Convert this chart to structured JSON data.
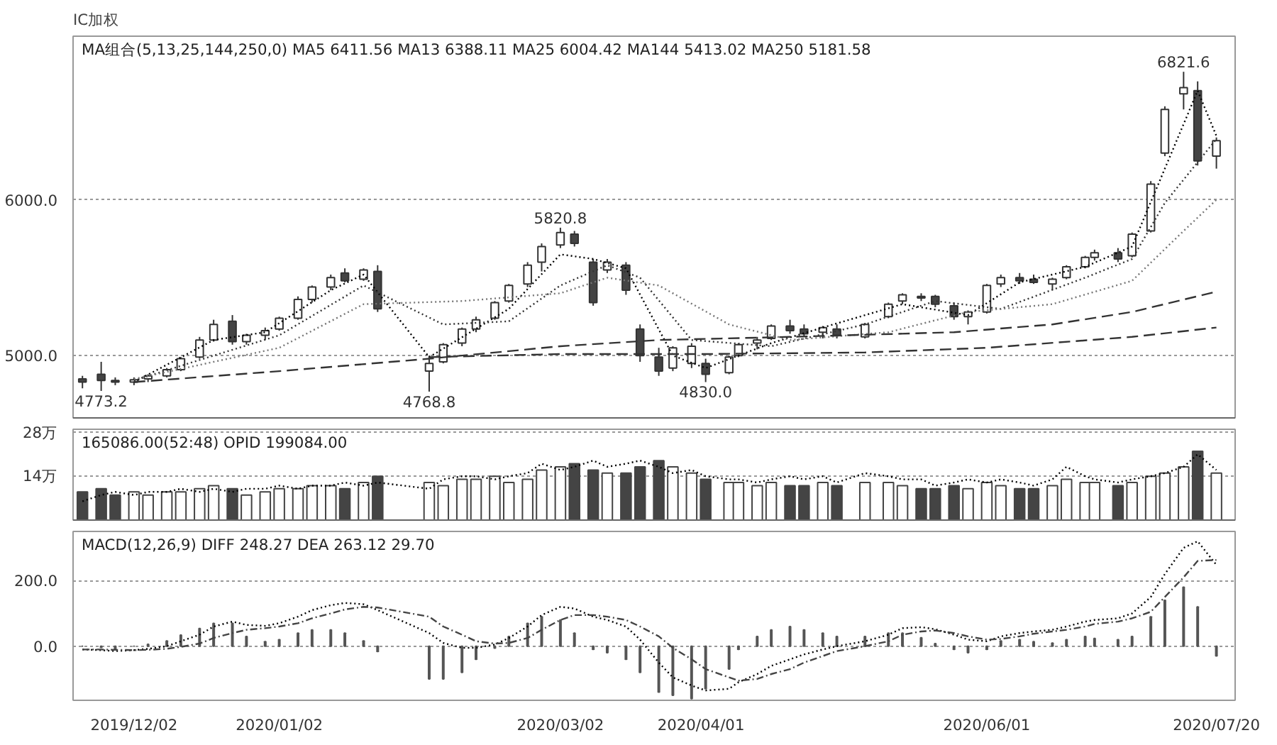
{
  "chart_data": [
    {
      "type": "candlestick",
      "title": "IC加权",
      "colors": [
        "#444444",
        "#444444",
        "#444444",
        "#ffffff",
        "#ffffff",
        "#ffffff",
        "#ffffff",
        "#ffffff",
        "#ffffff",
        "#444444",
        "#ffffff",
        "#ffffff",
        "#ffffff",
        "#ffffff",
        "#ffffff",
        "#ffffff",
        "#444444",
        "#ffffff",
        "#444444",
        "#ffffff",
        "#ffffff",
        "#ffffff",
        "#ffffff",
        "#ffffff",
        "#ffffff",
        "#ffffff",
        "#ffffff",
        "#ffffff",
        "#444444",
        "#444444",
        "#ffffff",
        "#444444",
        "#444444",
        "#444444",
        "#ffffff",
        "#ffffff",
        "#444444",
        "#ffffff",
        "#ffffff",
        "#ffffff",
        "#ffffff",
        "#444444",
        "#444444",
        "#ffffff",
        "#444444",
        "#ffffff",
        "#ffffff",
        "#ffffff",
        "#444444",
        "#444444",
        "#444444",
        "#ffffff",
        "#ffffff",
        "#ffffff",
        "#444444",
        "#444444",
        "#ffffff",
        "#ffffff",
        "#ffffff",
        "#ffffff",
        "#444444",
        "#ffffff",
        "#ffffff",
        "#ffffff",
        "#ffffff",
        "#444444",
        "#ffffff"
      ],
      "xlim": [
        "2019-11-19",
        "2020-07-24"
      ],
      "ylim": [
        4600,
        7050
      ],
      "yticks": [
        {
          "value": 5000,
          "label": "5000.0"
        },
        {
          "value": 6000,
          "label": "6000.0"
        }
      ],
      "grid": "y",
      "tick_labels": "y",
      "annotations": [
        "MA组合(5,13,25,144,250,0)  MA5 6411.56  MA13 6388.11  MA25 6004.42  MA144 5413.02  MA250 5181.58",
        {
          "text": "6821.6",
          "x": "2020-07-13",
          "y": 6821.6
        },
        {
          "text": "5820.8",
          "x": "2020-03-02",
          "y": 5820.8
        },
        {
          "text": "4768.8",
          "x": "2020-02-03",
          "y": 4768.8
        },
        {
          "text": "4830.0",
          "x": "2020-04-02",
          "y": 4830.0
        },
        {
          "text": "4773.2",
          "x": "2019-11-25",
          "y": 4773.2
        }
      ],
      "x": [
        "2019-11-21",
        "2019-11-25",
        "2019-11-28",
        "2019-12-02",
        "2019-12-05",
        "2019-12-09",
        "2019-12-12",
        "2019-12-16",
        "2019-12-19",
        "2019-12-23",
        "2019-12-26",
        "2019-12-30",
        "2020-01-02",
        "2020-01-06",
        "2020-01-09",
        "2020-01-13",
        "2020-01-16",
        "2020-01-20",
        "2020-01-23",
        "2020-02-03",
        "2020-02-06",
        "2020-02-10",
        "2020-02-13",
        "2020-02-17",
        "2020-02-20",
        "2020-02-24",
        "2020-02-27",
        "2020-03-02",
        "2020-03-05",
        "2020-03-09",
        "2020-03-12",
        "2020-03-16",
        "2020-03-19",
        "2020-03-23",
        "2020-03-26",
        "2020-03-30",
        "2020-04-02",
        "2020-04-07",
        "2020-04-09",
        "2020-04-13",
        "2020-04-16",
        "2020-04-20",
        "2020-04-23",
        "2020-04-27",
        "2020-04-30",
        "2020-05-06",
        "2020-05-11",
        "2020-05-14",
        "2020-05-18",
        "2020-05-21",
        "2020-05-25",
        "2020-05-28",
        "2020-06-01",
        "2020-06-04",
        "2020-06-08",
        "2020-06-11",
        "2020-06-15",
        "2020-06-18",
        "2020-06-22",
        "2020-06-24",
        "2020-06-29",
        "2020-07-02",
        "2020-07-06",
        "2020-07-09",
        "2020-07-13",
        "2020-07-16",
        "2020-07-20"
      ],
      "ohlc": [
        [
          4850,
          4870,
          4790,
          4830
        ],
        [
          4880,
          4960,
          4773.2,
          4840
        ],
        [
          4840,
          4860,
          4810,
          4830
        ],
        [
          4830,
          4860,
          4810,
          4845
        ],
        [
          4850,
          4880,
          4830,
          4870
        ],
        [
          4870,
          4920,
          4860,
          4910
        ],
        [
          4910,
          4990,
          4900,
          4980
        ],
        [
          4990,
          5120,
          4980,
          5100
        ],
        [
          5100,
          5230,
          5090,
          5200
        ],
        [
          5220,
          5260,
          5070,
          5090
        ],
        [
          5090,
          5140,
          5070,
          5130
        ],
        [
          5130,
          5180,
          5100,
          5160
        ],
        [
          5170,
          5250,
          5160,
          5240
        ],
        [
          5240,
          5380,
          5230,
          5360
        ],
        [
          5360,
          5450,
          5340,
          5440
        ],
        [
          5440,
          5520,
          5420,
          5500
        ],
        [
          5530,
          5560,
          5470,
          5480
        ],
        [
          5490,
          5560,
          5480,
          5550
        ],
        [
          5540,
          5580,
          5280,
          5300
        ],
        [
          4900,
          5000,
          4768.8,
          4950
        ],
        [
          4960,
          5080,
          4950,
          5070
        ],
        [
          5080,
          5180,
          5060,
          5170
        ],
        [
          5170,
          5250,
          5150,
          5230
        ],
        [
          5240,
          5350,
          5230,
          5340
        ],
        [
          5350,
          5460,
          5340,
          5450
        ],
        [
          5460,
          5600,
          5440,
          5580
        ],
        [
          5600,
          5720,
          5540,
          5700
        ],
        [
          5710,
          5820.8,
          5690,
          5790
        ],
        [
          5780,
          5800,
          5700,
          5720
        ],
        [
          5600,
          5620,
          5320,
          5340
        ],
        [
          5550,
          5620,
          5530,
          5600
        ],
        [
          5580,
          5600,
          5390,
          5420
        ],
        [
          5170,
          5200,
          4960,
          5000
        ],
        [
          4990,
          5050,
          4870,
          4900
        ],
        [
          4920,
          5060,
          4900,
          5050
        ],
        [
          4950,
          5080,
          4920,
          5060
        ],
        [
          4950,
          4980,
          4830.0,
          4880
        ],
        [
          4890,
          5000,
          4880,
          4990
        ],
        [
          5000,
          5080,
          4990,
          5070
        ],
        [
          5080,
          5120,
          5040,
          5100
        ],
        [
          5110,
          5200,
          5100,
          5190
        ],
        [
          5190,
          5230,
          5140,
          5160
        ],
        [
          5170,
          5200,
          5120,
          5140
        ],
        [
          5150,
          5190,
          5110,
          5180
        ],
        [
          5170,
          5200,
          5110,
          5130
        ],
        [
          5120,
          5210,
          5110,
          5200
        ],
        [
          5250,
          5340,
          5240,
          5330
        ],
        [
          5350,
          5400,
          5330,
          5390
        ],
        [
          5380,
          5400,
          5350,
          5370
        ],
        [
          5380,
          5390,
          5310,
          5330
        ],
        [
          5320,
          5340,
          5230,
          5250
        ],
        [
          5250,
          5290,
          5200,
          5280
        ],
        [
          5280,
          5460,
          5270,
          5450
        ],
        [
          5460,
          5520,
          5440,
          5500
        ],
        [
          5500,
          5530,
          5460,
          5480
        ],
        [
          5490,
          5520,
          5460,
          5470
        ],
        [
          5460,
          5500,
          5420,
          5490
        ],
        [
          5500,
          5580,
          5490,
          5570
        ],
        [
          5570,
          5640,
          5560,
          5630
        ],
        [
          5630,
          5680,
          5610,
          5660
        ],
        [
          5660,
          5690,
          5600,
          5620
        ],
        [
          5640,
          5790,
          5630,
          5780
        ],
        [
          5800,
          6120,
          5790,
          6100
        ],
        [
          6300,
          6600,
          6280,
          6580
        ],
        [
          6680,
          6821.6,
          6580,
          6720
        ],
        [
          6700,
          6760,
          6220,
          6250
        ],
        [
          6280,
          6400,
          6200,
          6380
        ]
      ],
      "series": [
        {
          "type": "line",
          "color": "#000000",
          "line_style": "dotted",
          "x": [
            "2019-12-02",
            "2019-12-19",
            "2019-12-30",
            "2020-01-13",
            "2020-01-20",
            "2020-02-03",
            "2020-02-20",
            "2020-03-02",
            "2020-03-09",
            "2020-03-16",
            "2020-03-26",
            "2020-04-02",
            "2020-04-16",
            "2020-04-27",
            "2020-05-14",
            "2020-05-28",
            "2020-06-08",
            "2020-06-22",
            "2020-07-02",
            "2020-07-09",
            "2020-07-16",
            "2020-07-20"
          ],
          "values": [
            4830,
            5100,
            5150,
            5420,
            5520,
            4990,
            5300,
            5650,
            5620,
            5560,
            5000,
            4920,
            5080,
            5180,
            5330,
            5260,
            5470,
            5570,
            5700,
            6200,
            6700,
            6410
          ]
        },
        {
          "type": "line",
          "color": "#333333",
          "line_style": "dotted",
          "x": [
            "2019-12-02",
            "2019-12-19",
            "2020-01-02",
            "2020-01-20",
            "2020-02-06",
            "2020-02-20",
            "2020-03-02",
            "2020-03-12",
            "2020-03-19",
            "2020-03-30",
            "2020-04-16",
            "2020-05-06",
            "2020-05-21",
            "2020-06-04",
            "2020-06-22",
            "2020-07-02",
            "2020-07-09",
            "2020-07-20"
          ],
          "values": [
            4840,
            5000,
            5130,
            5450,
            5200,
            5220,
            5450,
            5580,
            5500,
            5100,
            5060,
            5200,
            5350,
            5300,
            5500,
            5620,
            5980,
            6390
          ]
        },
        {
          "type": "line",
          "color": "#777777",
          "line_style": "dotted",
          "x": [
            "2019-12-02",
            "2020-01-02",
            "2020-01-20",
            "2020-02-10",
            "2020-03-02",
            "2020-03-12",
            "2020-03-23",
            "2020-04-07",
            "2020-04-20",
            "2020-05-11",
            "2020-05-28",
            "2020-06-15",
            "2020-07-02",
            "2020-07-13",
            "2020-07-20"
          ],
          "values": [
            4850,
            5050,
            5330,
            5350,
            5400,
            5500,
            5450,
            5200,
            5100,
            5150,
            5280,
            5330,
            5480,
            5800,
            6000
          ]
        },
        {
          "type": "line",
          "color": "#333333",
          "line_style": "dashed",
          "x": [
            "2019-12-02",
            "2020-01-02",
            "2020-02-03",
            "2020-03-02",
            "2020-03-23",
            "2020-04-20",
            "2020-05-25",
            "2020-06-15",
            "2020-07-02",
            "2020-07-20"
          ],
          "values": [
            4830,
            4900,
            4980,
            5060,
            5100,
            5120,
            5150,
            5200,
            5280,
            5410
          ]
        },
        {
          "type": "line",
          "color": "#333333",
          "line_style": "dashed",
          "x": [
            "2020-02-03",
            "2020-03-02",
            "2020-04-02",
            "2020-05-06",
            "2020-06-01",
            "2020-07-02",
            "2020-07-20"
          ],
          "values": [
            4990,
            5010,
            5010,
            5020,
            5050,
            5120,
            5180
          ]
        }
      ]
    },
    {
      "type": "bar",
      "xlim": [
        "2019-11-19",
        "2020-07-24"
      ],
      "ylim": [
        0,
        29
      ],
      "yticks": [
        {
          "value": 14,
          "label": "14万"
        },
        {
          "value": 28,
          "label": "28万"
        }
      ],
      "grid": "y",
      "tick_labels": "y",
      "annotations": [
        "165086.00(52:48)  OPID 199084.00"
      ],
      "x": [
        "2019-11-21",
        "2019-11-25",
        "2019-11-28",
        "2019-12-02",
        "2019-12-05",
        "2019-12-09",
        "2019-12-12",
        "2019-12-16",
        "2019-12-19",
        "2019-12-23",
        "2019-12-26",
        "2019-12-30",
        "2020-01-02",
        "2020-01-06",
        "2020-01-09",
        "2020-01-13",
        "2020-01-16",
        "2020-01-20",
        "2020-01-23",
        "2020-02-03",
        "2020-02-06",
        "2020-02-10",
        "2020-02-13",
        "2020-02-17",
        "2020-02-20",
        "2020-02-24",
        "2020-02-27",
        "2020-03-02",
        "2020-03-05",
        "2020-03-09",
        "2020-03-12",
        "2020-03-16",
        "2020-03-19",
        "2020-03-23",
        "2020-03-26",
        "2020-03-30",
        "2020-04-02",
        "2020-04-07",
        "2020-04-09",
        "2020-04-13",
        "2020-04-16",
        "2020-04-20",
        "2020-04-23",
        "2020-04-27",
        "2020-04-30",
        "2020-05-06",
        "2020-05-11",
        "2020-05-14",
        "2020-05-18",
        "2020-05-21",
        "2020-05-25",
        "2020-05-28",
        "2020-06-01",
        "2020-06-04",
        "2020-06-08",
        "2020-06-11",
        "2020-06-15",
        "2020-06-18",
        "2020-06-22",
        "2020-06-24",
        "2020-06-29",
        "2020-07-02",
        "2020-07-06",
        "2020-07-09",
        "2020-07-13",
        "2020-07-16",
        "2020-07-20"
      ],
      "series": [
        {
          "type": "bar",
          "colors": [
            "#444444",
            "#444444",
            "#444444",
            "#ffffff",
            "#ffffff",
            "#ffffff",
            "#ffffff",
            "#ffffff",
            "#ffffff",
            "#444444",
            "#ffffff",
            "#ffffff",
            "#ffffff",
            "#ffffff",
            "#ffffff",
            "#ffffff",
            "#444444",
            "#ffffff",
            "#444444",
            "#ffffff",
            "#ffffff",
            "#ffffff",
            "#ffffff",
            "#ffffff",
            "#ffffff",
            "#ffffff",
            "#ffffff",
            "#ffffff",
            "#444444",
            "#444444",
            "#ffffff",
            "#444444",
            "#444444",
            "#444444",
            "#ffffff",
            "#ffffff",
            "#444444",
            "#ffffff",
            "#ffffff",
            "#ffffff",
            "#ffffff",
            "#444444",
            "#444444",
            "#ffffff",
            "#444444",
            "#ffffff",
            "#ffffff",
            "#ffffff",
            "#444444",
            "#444444",
            "#444444",
            "#ffffff",
            "#ffffff",
            "#ffffff",
            "#444444",
            "#444444",
            "#ffffff",
            "#ffffff",
            "#ffffff",
            "#ffffff",
            "#444444",
            "#ffffff",
            "#ffffff",
            "#ffffff",
            "#ffffff",
            "#444444",
            "#ffffff"
          ],
          "values": [
            9,
            10,
            8,
            9,
            8,
            9,
            9,
            10,
            11,
            10,
            8,
            9,
            10,
            10,
            11,
            11,
            10,
            12,
            14,
            12,
            11,
            13,
            13,
            14,
            12,
            13,
            16,
            17,
            18,
            16,
            15,
            15,
            17,
            19,
            17,
            15,
            13,
            12,
            12,
            11,
            12,
            11,
            11,
            12,
            11,
            12,
            12,
            11,
            10,
            10,
            11,
            10,
            12,
            11,
            10,
            10,
            11,
            13,
            12,
            12,
            11,
            12,
            14,
            15,
            17,
            22,
            15
          ]
        },
        {
          "type": "line",
          "color": "#000000",
          "line_style": "dotted",
          "values": [
            6,
            8,
            9,
            8,
            9,
            9,
            10,
            9,
            10,
            9,
            10,
            10,
            11,
            10,
            11,
            11,
            12,
            11,
            12,
            10,
            13,
            14,
            14,
            13,
            14,
            15,
            18,
            16,
            17,
            19,
            17,
            18,
            19,
            17,
            15,
            16,
            14,
            13,
            13,
            12,
            13,
            14,
            13,
            14,
            12,
            15,
            14,
            13,
            13,
            11,
            12,
            13,
            12,
            13,
            12,
            11,
            13,
            17,
            14,
            13,
            12,
            13,
            14,
            15,
            17,
            21,
            16
          ]
        }
      ]
    },
    {
      "type": "line",
      "xlim": [
        "2019-11-19",
        "2020-07-24"
      ],
      "ylim": [
        -165,
        350
      ],
      "yticks": [
        {
          "value": 0,
          "label": "0.0"
        },
        {
          "value": 200,
          "label": "200.0"
        }
      ],
      "grid": "y",
      "xticks": [
        {
          "value": "2019-12-02",
          "label": "2019/12/02"
        },
        {
          "value": "2020-01-02",
          "label": "2020/01/02"
        },
        {
          "value": "2020-03-02",
          "label": "2020/03/02"
        },
        {
          "value": "2020-04-01",
          "label": "2020/04/01"
        },
        {
          "value": "2020-06-01",
          "label": "2020/06/01"
        },
        {
          "value": "2020-07-20",
          "label": "2020/07/20"
        }
      ],
      "annotations": [
        "MACD(12,26,9)  DIFF 248.27  DEA 263.12  29.70"
      ],
      "x": [
        "2019-11-21",
        "2019-11-25",
        "2019-11-28",
        "2019-12-02",
        "2019-12-05",
        "2019-12-09",
        "2019-12-12",
        "2019-12-16",
        "2019-12-19",
        "2019-12-23",
        "2019-12-26",
        "2019-12-30",
        "2020-01-02",
        "2020-01-06",
        "2020-01-09",
        "2020-01-13",
        "2020-01-16",
        "2020-01-20",
        "2020-01-23",
        "2020-02-03",
        "2020-02-06",
        "2020-02-10",
        "2020-02-13",
        "2020-02-17",
        "2020-02-20",
        "2020-02-24",
        "2020-02-27",
        "2020-03-02",
        "2020-03-05",
        "2020-03-09",
        "2020-03-12",
        "2020-03-16",
        "2020-03-19",
        "2020-03-23",
        "2020-03-26",
        "2020-03-30",
        "2020-04-02",
        "2020-04-07",
        "2020-04-09",
        "2020-04-13",
        "2020-04-16",
        "2020-04-20",
        "2020-04-23",
        "2020-04-27",
        "2020-04-30",
        "2020-05-06",
        "2020-05-11",
        "2020-05-14",
        "2020-05-18",
        "2020-05-21",
        "2020-05-25",
        "2020-05-28",
        "2020-06-01",
        "2020-06-04",
        "2020-06-08",
        "2020-06-11",
        "2020-06-15",
        "2020-06-18",
        "2020-06-22",
        "2020-06-24",
        "2020-06-29",
        "2020-07-02",
        "2020-07-06",
        "2020-07-09",
        "2020-07-13",
        "2020-07-16",
        "2020-07-20"
      ],
      "series": [
        {
          "type": "bar",
          "color": "#555555",
          "values": [
            0,
            -4,
            -8,
            0,
            6,
            16,
            34,
            54,
            70,
            70,
            30,
            14,
            20,
            40,
            50,
            50,
            40,
            16,
            -16,
            -100,
            -100,
            -80,
            -40,
            -6,
            30,
            70,
            90,
            80,
            40,
            -10,
            -20,
            -40,
            -80,
            -140,
            -150,
            -160,
            -130,
            -70,
            -10,
            30,
            50,
            60,
            50,
            40,
            30,
            30,
            40,
            40,
            26,
            8,
            -10,
            -20,
            -10,
            16,
            20,
            14,
            10,
            20,
            30,
            24,
            20,
            30,
            90,
            140,
            180,
            120,
            -30
          ]
        },
        {
          "type": "line",
          "color": "#000000",
          "line_style": "dotted",
          "values": [
            -10,
            -12,
            -15,
            -12,
            -8,
            0,
            15,
            35,
            60,
            75,
            65,
            62,
            70,
            90,
            110,
            125,
            132,
            128,
            110,
            40,
            10,
            -5,
            -5,
            5,
            25,
            60,
            95,
            120,
            115,
            90,
            80,
            60,
            20,
            -50,
            -95,
            -120,
            -135,
            -130,
            -110,
            -85,
            -60,
            -40,
            -25,
            -10,
            0,
            15,
            35,
            55,
            58,
            52,
            35,
            20,
            15,
            30,
            40,
            45,
            50,
            60,
            75,
            80,
            85,
            100,
            150,
            220,
            300,
            320,
            248
          ]
        },
        {
          "type": "line",
          "color": "#444444",
          "line_style": "dashdot",
          "values": [
            -10,
            -10,
            -11,
            -12,
            -11,
            -8,
            -2,
            8,
            25,
            40,
            50,
            55,
            60,
            70,
            85,
            100,
            112,
            120,
            118,
            90,
            60,
            35,
            15,
            8,
            10,
            25,
            50,
            80,
            95,
            95,
            90,
            80,
            60,
            30,
            -5,
            -40,
            -70,
            -95,
            -105,
            -100,
            -85,
            -70,
            -50,
            -30,
            -15,
            0,
            15,
            35,
            45,
            48,
            40,
            30,
            20,
            22,
            30,
            38,
            45,
            50,
            60,
            68,
            75,
            85,
            105,
            150,
            210,
            260,
            263
          ]
        }
      ]
    }
  ]
}
